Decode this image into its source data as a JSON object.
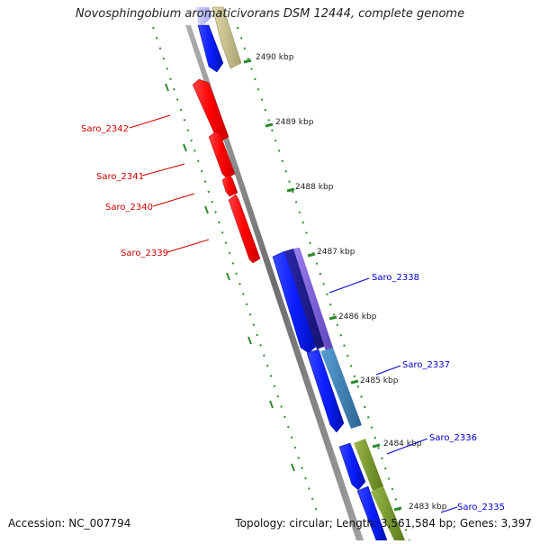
{
  "header": {
    "title": "Novosphingobium aromaticivorans DSM 12444, complete genome"
  },
  "footer": {
    "accession": "Accession: NC_007794",
    "topology": "Topology: circular; Length: 3,561,584 bp; Genes: 3,397"
  },
  "colors": {
    "backbone": "#8a8a8a",
    "tick": "#2d8a2d",
    "red": "#ff0000",
    "blue": "#0a1eff",
    "navy": "#1a1890",
    "purple": "#7a5cd6",
    "steel": "#3d7fb4",
    "olive": "#7a9a2a",
    "khaki": "#c8c088",
    "lavender": "#bbbcf5",
    "label_red": "#cc0000",
    "label_blue": "#0000cc"
  },
  "scale_ticks": [
    {
      "label": "2490 kbp"
    },
    {
      "label": "2489 kbp"
    },
    {
      "label": "2488 kbp"
    },
    {
      "label": "2487 kbp"
    },
    {
      "label": "2486 kbp"
    },
    {
      "label": "2485 kbp"
    },
    {
      "label": "2484 kbp"
    },
    {
      "label": "2483 kbp"
    }
  ],
  "gene_labels": {
    "saro_2342": "Saro_2342",
    "saro_2341": "Saro_2341",
    "saro_2340": "Saro_2340",
    "saro_2339": "Saro_2339",
    "saro_2338": "Saro_2338",
    "saro_2337": "Saro_2337",
    "saro_2336": "Saro_2336",
    "saro_2335": "Saro_2335"
  }
}
